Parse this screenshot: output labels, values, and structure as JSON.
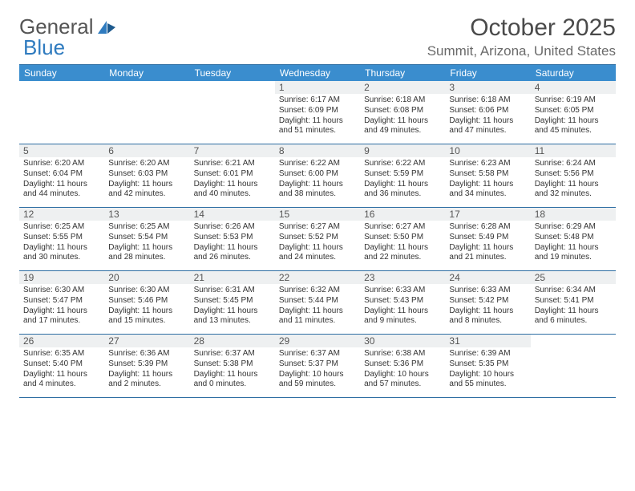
{
  "brand": {
    "general": "General",
    "blue": "Blue"
  },
  "title": "October 2025",
  "location": "Summit, Arizona, United States",
  "colors": {
    "header_bg": "#3a8dce",
    "border": "#2e6ea3",
    "daynum_bg": "#eef0f1",
    "logo_accent": "#2f7bbf"
  },
  "day_headers": [
    "Sunday",
    "Monday",
    "Tuesday",
    "Wednesday",
    "Thursday",
    "Friday",
    "Saturday"
  ],
  "weeks": [
    [
      {
        "n": "",
        "text": ""
      },
      {
        "n": "",
        "text": ""
      },
      {
        "n": "",
        "text": ""
      },
      {
        "n": "1",
        "text": "Sunrise: 6:17 AM\nSunset: 6:09 PM\nDaylight: 11 hours and 51 minutes."
      },
      {
        "n": "2",
        "text": "Sunrise: 6:18 AM\nSunset: 6:08 PM\nDaylight: 11 hours and 49 minutes."
      },
      {
        "n": "3",
        "text": "Sunrise: 6:18 AM\nSunset: 6:06 PM\nDaylight: 11 hours and 47 minutes."
      },
      {
        "n": "4",
        "text": "Sunrise: 6:19 AM\nSunset: 6:05 PM\nDaylight: 11 hours and 45 minutes."
      }
    ],
    [
      {
        "n": "5",
        "text": "Sunrise: 6:20 AM\nSunset: 6:04 PM\nDaylight: 11 hours and 44 minutes."
      },
      {
        "n": "6",
        "text": "Sunrise: 6:20 AM\nSunset: 6:03 PM\nDaylight: 11 hours and 42 minutes."
      },
      {
        "n": "7",
        "text": "Sunrise: 6:21 AM\nSunset: 6:01 PM\nDaylight: 11 hours and 40 minutes."
      },
      {
        "n": "8",
        "text": "Sunrise: 6:22 AM\nSunset: 6:00 PM\nDaylight: 11 hours and 38 minutes."
      },
      {
        "n": "9",
        "text": "Sunrise: 6:22 AM\nSunset: 5:59 PM\nDaylight: 11 hours and 36 minutes."
      },
      {
        "n": "10",
        "text": "Sunrise: 6:23 AM\nSunset: 5:58 PM\nDaylight: 11 hours and 34 minutes."
      },
      {
        "n": "11",
        "text": "Sunrise: 6:24 AM\nSunset: 5:56 PM\nDaylight: 11 hours and 32 minutes."
      }
    ],
    [
      {
        "n": "12",
        "text": "Sunrise: 6:25 AM\nSunset: 5:55 PM\nDaylight: 11 hours and 30 minutes."
      },
      {
        "n": "13",
        "text": "Sunrise: 6:25 AM\nSunset: 5:54 PM\nDaylight: 11 hours and 28 minutes."
      },
      {
        "n": "14",
        "text": "Sunrise: 6:26 AM\nSunset: 5:53 PM\nDaylight: 11 hours and 26 minutes."
      },
      {
        "n": "15",
        "text": "Sunrise: 6:27 AM\nSunset: 5:52 PM\nDaylight: 11 hours and 24 minutes."
      },
      {
        "n": "16",
        "text": "Sunrise: 6:27 AM\nSunset: 5:50 PM\nDaylight: 11 hours and 22 minutes."
      },
      {
        "n": "17",
        "text": "Sunrise: 6:28 AM\nSunset: 5:49 PM\nDaylight: 11 hours and 21 minutes."
      },
      {
        "n": "18",
        "text": "Sunrise: 6:29 AM\nSunset: 5:48 PM\nDaylight: 11 hours and 19 minutes."
      }
    ],
    [
      {
        "n": "19",
        "text": "Sunrise: 6:30 AM\nSunset: 5:47 PM\nDaylight: 11 hours and 17 minutes."
      },
      {
        "n": "20",
        "text": "Sunrise: 6:30 AM\nSunset: 5:46 PM\nDaylight: 11 hours and 15 minutes."
      },
      {
        "n": "21",
        "text": "Sunrise: 6:31 AM\nSunset: 5:45 PM\nDaylight: 11 hours and 13 minutes."
      },
      {
        "n": "22",
        "text": "Sunrise: 6:32 AM\nSunset: 5:44 PM\nDaylight: 11 hours and 11 minutes."
      },
      {
        "n": "23",
        "text": "Sunrise: 6:33 AM\nSunset: 5:43 PM\nDaylight: 11 hours and 9 minutes."
      },
      {
        "n": "24",
        "text": "Sunrise: 6:33 AM\nSunset: 5:42 PM\nDaylight: 11 hours and 8 minutes."
      },
      {
        "n": "25",
        "text": "Sunrise: 6:34 AM\nSunset: 5:41 PM\nDaylight: 11 hours and 6 minutes."
      }
    ],
    [
      {
        "n": "26",
        "text": "Sunrise: 6:35 AM\nSunset: 5:40 PM\nDaylight: 11 hours and 4 minutes."
      },
      {
        "n": "27",
        "text": "Sunrise: 6:36 AM\nSunset: 5:39 PM\nDaylight: 11 hours and 2 minutes."
      },
      {
        "n": "28",
        "text": "Sunrise: 6:37 AM\nSunset: 5:38 PM\nDaylight: 11 hours and 0 minutes."
      },
      {
        "n": "29",
        "text": "Sunrise: 6:37 AM\nSunset: 5:37 PM\nDaylight: 10 hours and 59 minutes."
      },
      {
        "n": "30",
        "text": "Sunrise: 6:38 AM\nSunset: 5:36 PM\nDaylight: 10 hours and 57 minutes."
      },
      {
        "n": "31",
        "text": "Sunrise: 6:39 AM\nSunset: 5:35 PM\nDaylight: 10 hours and 55 minutes."
      },
      {
        "n": "",
        "text": ""
      }
    ]
  ]
}
